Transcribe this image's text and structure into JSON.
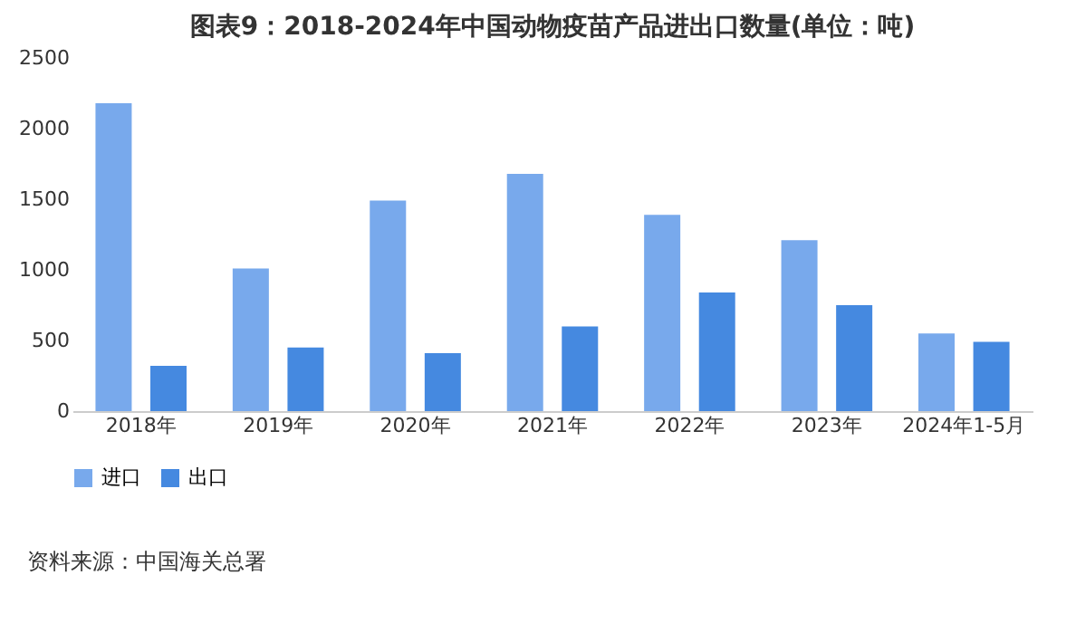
{
  "chart_data": {
    "type": "bar",
    "title": "图表9：2018-2024年中国动物疫苗产品进出口数量(单位：吨)",
    "categories": [
      "2018年",
      "2019年",
      "2020年",
      "2021年",
      "2022年",
      "2023年",
      "2024年1-5月"
    ],
    "series": [
      {
        "name": "进口",
        "color": "#78a9ec",
        "values": [
          2180,
          1010,
          1490,
          1680,
          1390,
          1210,
          550
        ]
      },
      {
        "name": "出口",
        "color": "#4589e0",
        "values": [
          320,
          450,
          410,
          600,
          840,
          750,
          490
        ]
      }
    ],
    "ylim": [
      0,
      2500
    ],
    "yticks": [
      0,
      500,
      1000,
      1500,
      2000,
      2500
    ],
    "grid": false,
    "legend": "bottom",
    "annotations": [
      "资料来源：中国海关总署"
    ]
  }
}
